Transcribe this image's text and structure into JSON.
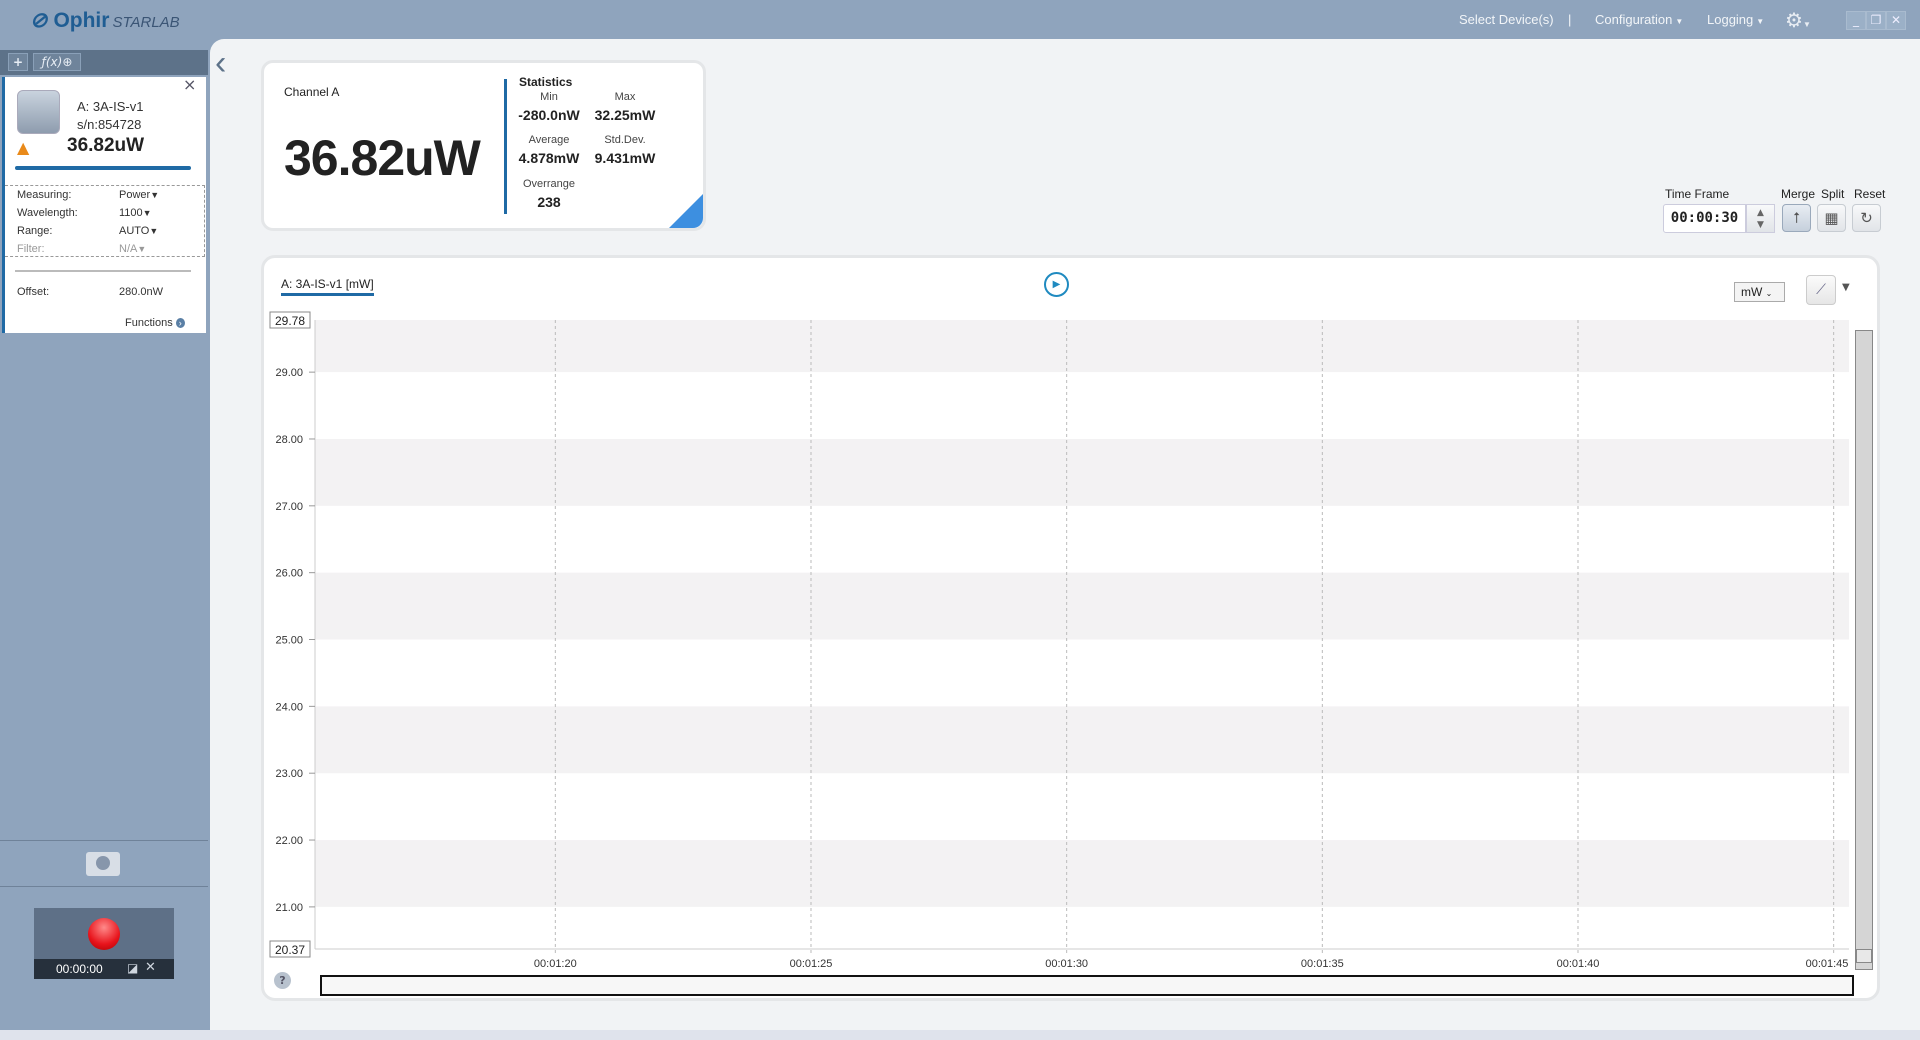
{
  "app": {
    "brand": "Ophir",
    "product": "STARLAB"
  },
  "menu": {
    "select_devices": "Select Device(s)",
    "separator": "|",
    "configuration": "Configuration",
    "logging": "Logging",
    "settings_icon": "gear-icon"
  },
  "window": {
    "minimize": "_",
    "restore": "❐",
    "close": "✕"
  },
  "sidebar": {
    "tools": {
      "add": "+",
      "function": "ƒ(x)⊕"
    },
    "device": {
      "name": "A: 3A-IS-v1",
      "serial": "s/n:854728",
      "reading": "36.82uW",
      "close": "×",
      "warning_icon": "warning-icon",
      "params": [
        {
          "label": "Measuring:",
          "value": "Power"
        },
        {
          "label": "Wavelength:",
          "value": "1100"
        },
        {
          "label": "Range:",
          "value": "AUTO"
        },
        {
          "label": "Filter:",
          "value": "N/A"
        }
      ],
      "offset_label": "Offset:",
      "offset_value": "280.0nW",
      "functions": "Functions"
    },
    "record": {
      "time": "00:00:00"
    }
  },
  "channel": {
    "title": "Channel A",
    "value": "36.82uW",
    "statistics": {
      "title": "Statistics",
      "min_label": "Min",
      "min": "-280.0nW",
      "max_label": "Max",
      "max": "32.25mW",
      "avg_label": "Average",
      "avg": "4.878mW",
      "std_label": "Std.Dev.",
      "std": "9.431mW",
      "over_label": "Overrange",
      "over": "238"
    }
  },
  "controls": {
    "timeframe_label": "Time Frame",
    "timeframe": "00:00:30",
    "merge": "Merge",
    "split": "Split",
    "reset": "Reset"
  },
  "chart": {
    "tab": "A: 3A-IS-v1 [mW]",
    "unit": "mW",
    "help": "?"
  },
  "chart_data": {
    "type": "line",
    "series": [],
    "ylim": [
      20.37,
      29.78
    ],
    "ylim_labels": [
      "29.78",
      "20.37"
    ],
    "yticks": [
      "29.00",
      "28.00",
      "27.00",
      "26.00",
      "25.00",
      "24.00",
      "23.00",
      "22.00",
      "21.00"
    ],
    "xticks": [
      "00:01:20",
      "00:01:25",
      "00:01:30",
      "00:01:35",
      "00:01:40",
      "00:01:45"
    ],
    "xlim_seconds": [
      75.3,
      105.3
    ],
    "grid": true,
    "band_color": "#f3f2f3",
    "line_color": "#1f6aa5"
  },
  "colors": {
    "accent": "#1f6aa5",
    "sidebar": "#8fa4bd",
    "record": "#e8141c"
  }
}
